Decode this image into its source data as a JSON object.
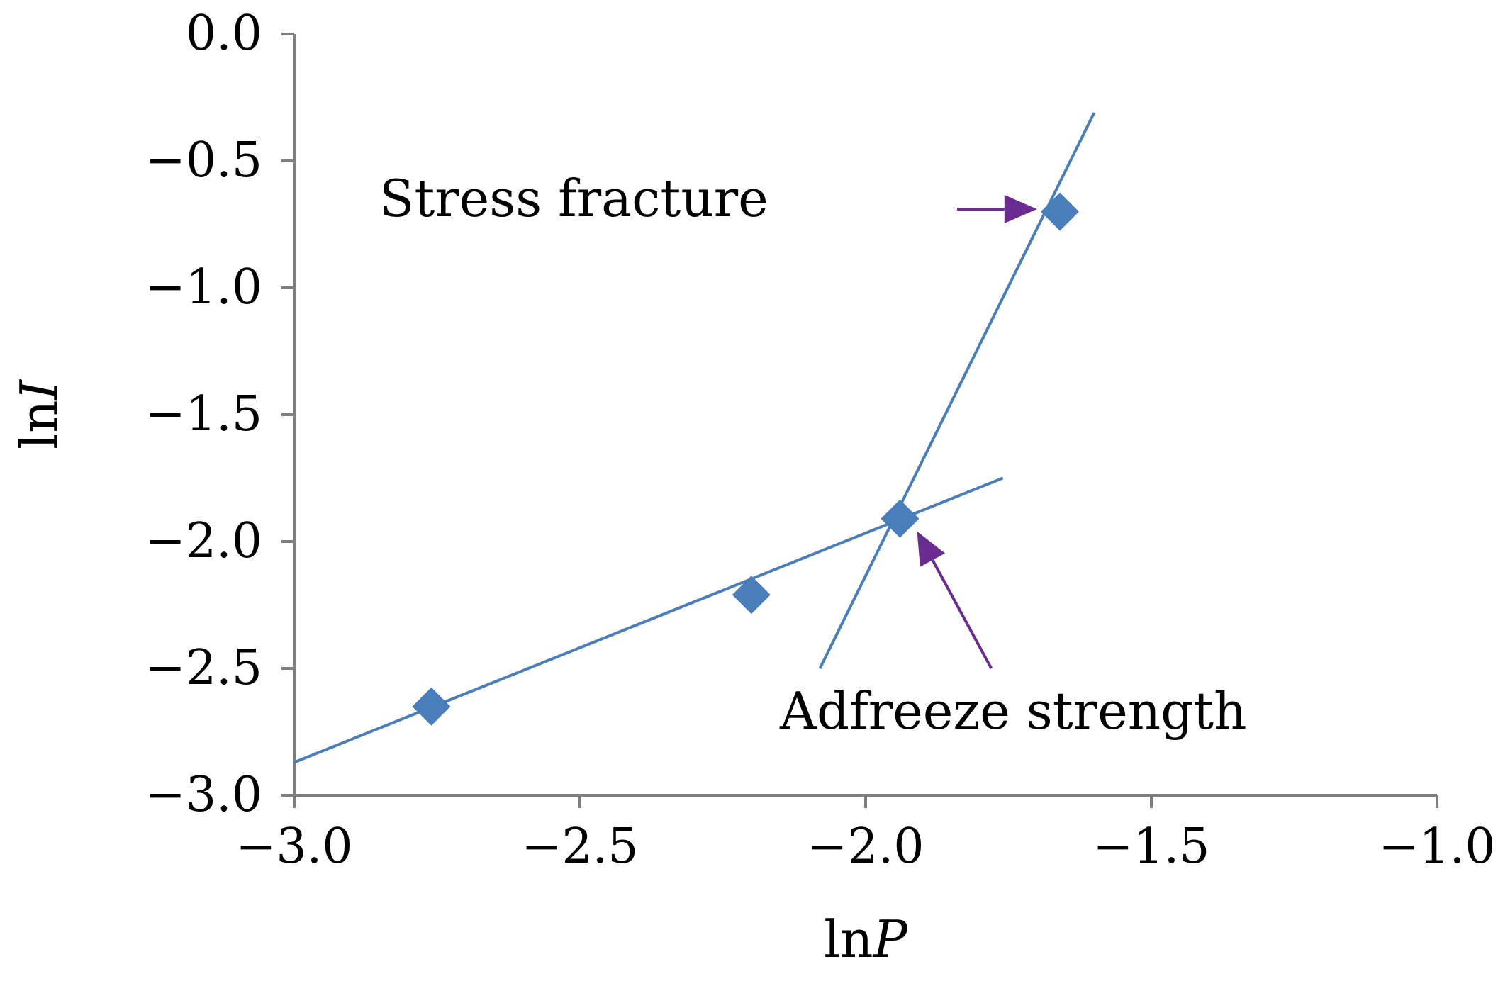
{
  "chart_data": {
    "type": "scatter",
    "xlabel": {
      "prefix": "ln",
      "var": "P"
    },
    "ylabel": {
      "prefix": "ln",
      "var": "I"
    },
    "xlim": [
      -3.0,
      -1.0
    ],
    "ylim": [
      -3.0,
      0.0
    ],
    "x_ticks": [
      -3.0,
      -2.5,
      -2.0,
      -1.5,
      -1.0
    ],
    "y_ticks": [
      0.0,
      -0.5,
      -1.0,
      -1.5,
      -2.0,
      -2.5,
      -3.0
    ],
    "x_tick_labels": [
      "−3.0",
      "−2.5",
      "−2.0",
      "−1.5",
      "−1.0"
    ],
    "y_tick_labels": [
      "0.0",
      "−0.5",
      "−1.0",
      "−1.5",
      "−2.0",
      "−2.5",
      "−3.0"
    ],
    "grid": false,
    "points": [
      {
        "x": -2.76,
        "y": -2.65
      },
      {
        "x": -2.2,
        "y": -2.21
      },
      {
        "x": -1.94,
        "y": -1.91
      },
      {
        "x": -1.66,
        "y": -0.7
      }
    ],
    "trend_lines": [
      {
        "x": [
          -3.0,
          -1.76
        ],
        "y": [
          -2.87,
          -1.75
        ]
      },
      {
        "x": [
          -2.08,
          -1.6
        ],
        "y": [
          -2.5,
          -0.31
        ]
      }
    ],
    "annotations": [
      {
        "text": "Stress fracture",
        "arrow_from": [
          -1.84,
          -0.69
        ],
        "arrow_to": [
          -1.7,
          -0.69
        ]
      },
      {
        "text": "Adfreeze strength",
        "arrow_from": [
          -1.78,
          -2.5
        ],
        "arrow_to": [
          -1.91,
          -1.96
        ]
      }
    ],
    "colors": {
      "series": "#4A7EBB",
      "line": "#4A7EBB",
      "arrow": "#6B2C91",
      "axis": "#7F7F7F"
    }
  }
}
